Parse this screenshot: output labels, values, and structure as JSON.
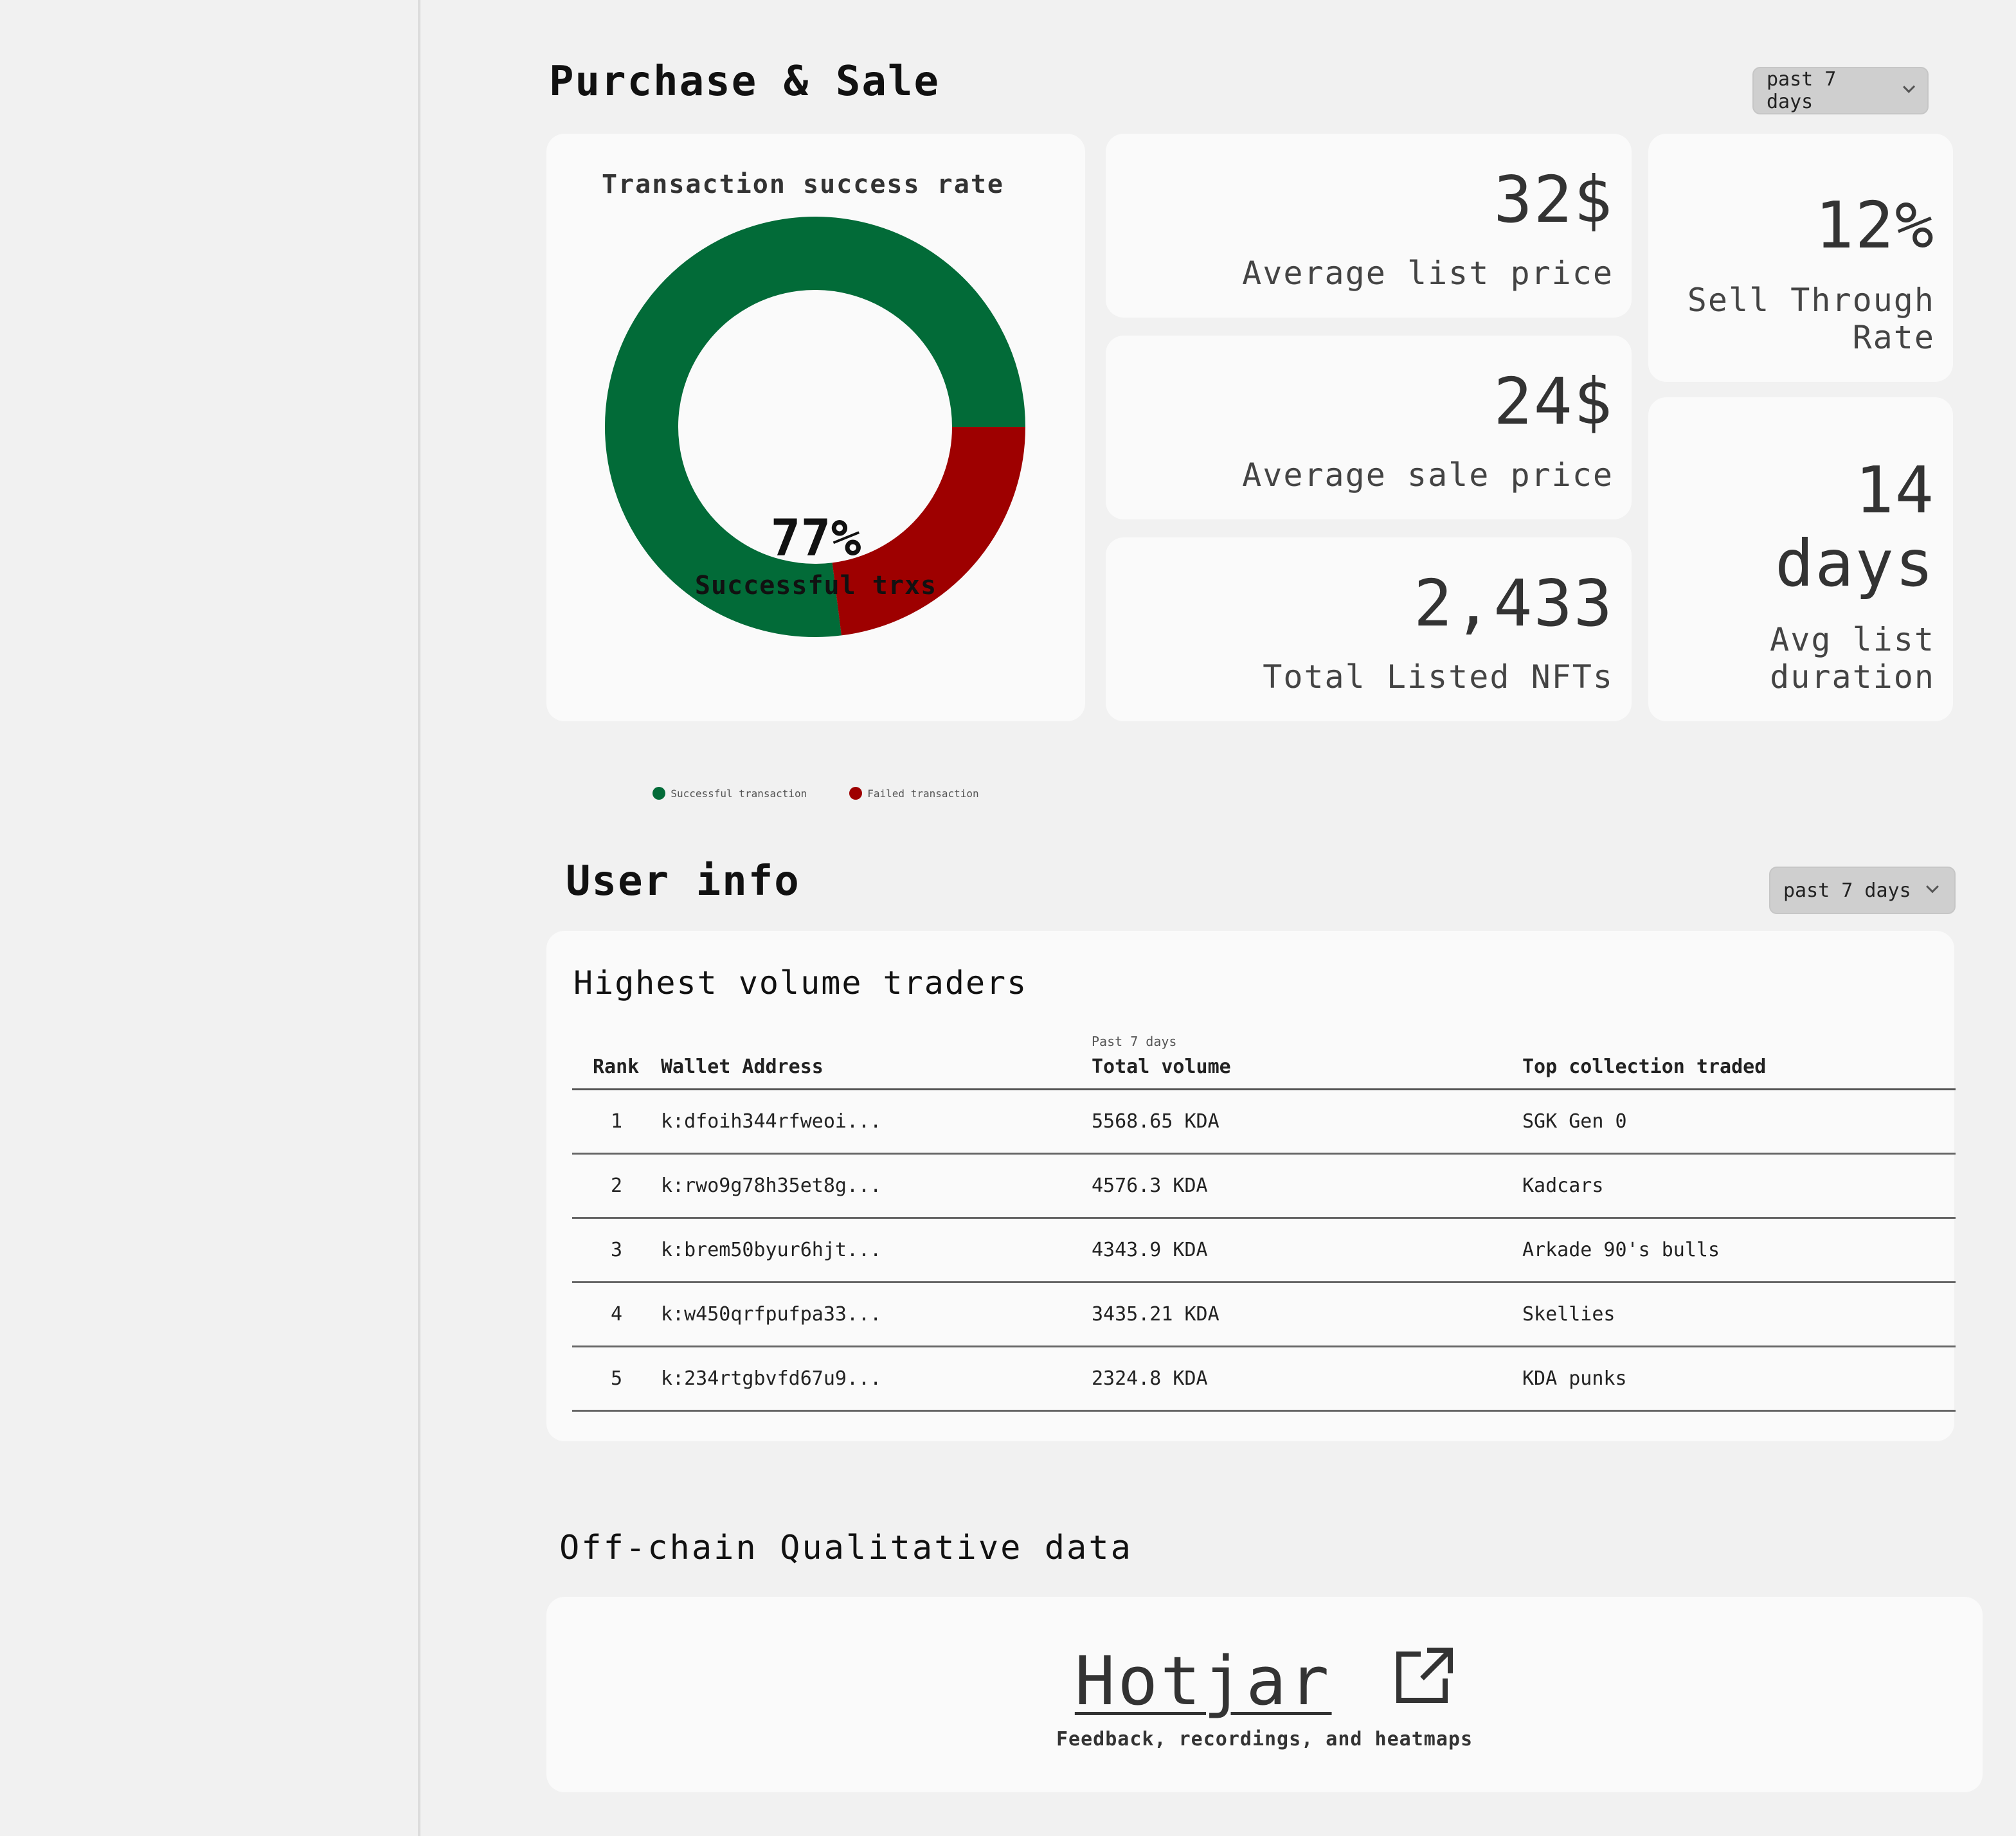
{
  "purchase_sale": {
    "title": "Purchase & Sale",
    "range": "past 7 days",
    "donut": {
      "title": "Transaction success rate",
      "center_value": "77%",
      "center_label": "Successful trxs",
      "legend_success": "Successful transaction",
      "legend_failed": "Failed transaction",
      "success_fraction": 0.77,
      "success_color": "#026b38",
      "failed_color": "#9e0000"
    },
    "stats": {
      "avg_list_price_value": "32$",
      "avg_list_price_label": "Average list price",
      "avg_sale_price_value": "24$",
      "avg_sale_price_label": "Average sale price",
      "total_listed_value": "2,433",
      "total_listed_label": "Total Listed NFTs",
      "sell_through_value": "12%",
      "sell_through_label_1": "Sell Through",
      "sell_through_label_2": "Rate",
      "avg_duration_value_1": "14",
      "avg_duration_value_2": "days",
      "avg_duration_label_1": "Avg list",
      "avg_duration_label_2": "duration"
    }
  },
  "user_info": {
    "title": "User info",
    "range": "past 7 days",
    "table_title": "Highest volume traders",
    "headers": {
      "rank": "Rank",
      "wallet": "Wallet Address",
      "volume_sub": "Past 7 days",
      "volume": "Total volume",
      "collection": "Top collection traded"
    },
    "rows": [
      {
        "rank": "1",
        "wallet": "k:dfoih344rfweoi...",
        "volume": "5568.65 KDA",
        "collection": "SGK Gen 0"
      },
      {
        "rank": "2",
        "wallet": "k:rwo9g78h35et8g...",
        "volume": "4576.3 KDA",
        "collection": "Kadcars"
      },
      {
        "rank": "3",
        "wallet": "k:brem50byur6hjt...",
        "volume": "4343.9 KDA",
        "collection": "Arkade 90's bulls"
      },
      {
        "rank": "4",
        "wallet": "k:w450qrfpufpa33...",
        "volume": "3435.21 KDA",
        "collection": "Skellies"
      },
      {
        "rank": "5",
        "wallet": "k:234rtgbvfd67u9...",
        "volume": "2324.8 KDA",
        "collection": "KDA punks"
      }
    ]
  },
  "offchain": {
    "title": "Off-chain Qualitative data",
    "link_text": "Hotjar",
    "link_icon": "external-link-icon",
    "subtitle": "Feedback, recordings, and heatmaps"
  }
}
